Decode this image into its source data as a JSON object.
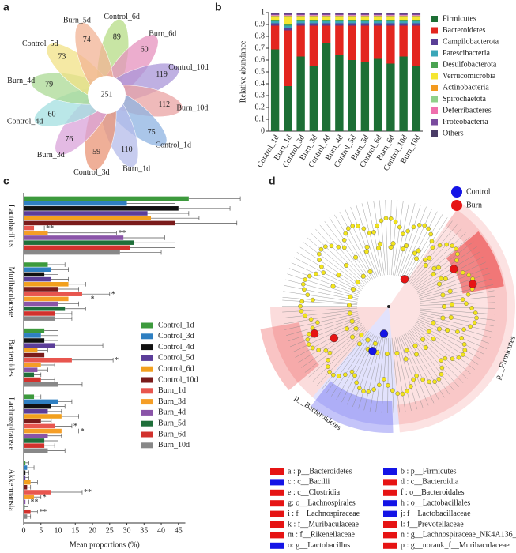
{
  "chart_data": [
    {
      "type": "venn",
      "panel": "a",
      "center_label": "251",
      "petals": [
        {
          "name": "Control_6d",
          "count": 89,
          "color": "#b5dc86"
        },
        {
          "name": "Burn_6d",
          "count": 60,
          "color": "#e691be"
        },
        {
          "name": "Control_10d",
          "count": 119,
          "color": "#a996d8"
        },
        {
          "name": "Burn_10d",
          "count": 112,
          "color": "#e9a3a3"
        },
        {
          "name": "Control_1d",
          "count": 75,
          "color": "#8db3e2"
        },
        {
          "name": "Burn_1d",
          "count": 110,
          "color": "#b4bbe9"
        },
        {
          "name": "Control_3d",
          "count": 59,
          "color": "#ea9476"
        },
        {
          "name": "Burn_3d",
          "count": 76,
          "color": "#d9a3d9"
        },
        {
          "name": "Control_4d",
          "count": 60,
          "color": "#a3dfe0"
        },
        {
          "name": "Burn_4d",
          "count": 79,
          "color": "#abd994"
        },
        {
          "name": "Control_5d",
          "count": 73,
          "color": "#f1e185"
        },
        {
          "name": "Burn_5d",
          "count": 74,
          "color": "#f1b394"
        }
      ]
    },
    {
      "type": "bar",
      "stacked": true,
      "panel": "b",
      "y_label": "Relative abundance",
      "categories": [
        "Control_1d",
        "Burn_1d",
        "Control_3d",
        "Burn_3d",
        "Control_4d",
        "Burn_4d",
        "Control_5d",
        "Burn_5d",
        "Control_6d",
        "Burn_6d",
        "Control_10d",
        "Burn_10d"
      ],
      "ylim": [
        0,
        1
      ],
      "yticks": [
        0,
        0.1,
        0.2,
        0.3,
        0.4,
        0.5,
        0.6,
        0.7,
        0.8,
        0.9,
        1
      ],
      "series": [
        {
          "name": "Firmicutes",
          "color": "#1d6f35",
          "values": [
            0.69,
            0.38,
            0.63,
            0.55,
            0.74,
            0.64,
            0.6,
            0.58,
            0.61,
            0.57,
            0.63,
            0.55
          ]
        },
        {
          "name": "Bacteroidetes",
          "color": "#e3261f",
          "values": [
            0.2,
            0.47,
            0.26,
            0.34,
            0.15,
            0.25,
            0.29,
            0.31,
            0.28,
            0.32,
            0.26,
            0.34
          ]
        },
        {
          "name": "Campilobacterota",
          "color": "#5a3f96",
          "values": [
            0.02,
            0.02,
            0.02,
            0.02,
            0.02,
            0.02,
            0.02,
            0.02,
            0.02,
            0.02,
            0.02,
            0.02
          ]
        },
        {
          "name": "Patescibacteria",
          "color": "#3aa6b8",
          "values": [
            0.02,
            0.02,
            0.02,
            0.02,
            0.02,
            0.02,
            0.02,
            0.02,
            0.02,
            0.02,
            0.02,
            0.02
          ]
        },
        {
          "name": "Desulfobacterota",
          "color": "#4aa352",
          "values": [
            0.01,
            0.01,
            0.01,
            0.01,
            0.01,
            0.01,
            0.01,
            0.01,
            0.01,
            0.01,
            0.01,
            0.01
          ]
        },
        {
          "name": "Verrucomicrobia",
          "color": "#f5e631",
          "values": [
            0.02,
            0.06,
            0.02,
            0.02,
            0.02,
            0.02,
            0.02,
            0.02,
            0.02,
            0.02,
            0.02,
            0.02
          ]
        },
        {
          "name": "Actinobacteria",
          "color": "#f39a1f",
          "values": [
            0.01,
            0.01,
            0.01,
            0.01,
            0.01,
            0.01,
            0.01,
            0.01,
            0.01,
            0.01,
            0.01,
            0.01
          ]
        },
        {
          "name": "Spirochaetota",
          "color": "#8ed08a",
          "values": [
            0.005,
            0.005,
            0.005,
            0.005,
            0.005,
            0.005,
            0.005,
            0.005,
            0.005,
            0.005,
            0.005,
            0.005
          ]
        },
        {
          "name": "Deferribacteres",
          "color": "#ef6fae",
          "values": [
            0.005,
            0.005,
            0.005,
            0.005,
            0.005,
            0.005,
            0.005,
            0.005,
            0.005,
            0.005,
            0.005,
            0.005
          ]
        },
        {
          "name": "Proteobacteria",
          "color": "#7a4b9e",
          "values": [
            0.01,
            0.01,
            0.01,
            0.01,
            0.01,
            0.01,
            0.01,
            0.01,
            0.01,
            0.01,
            0.01,
            0.01
          ]
        },
        {
          "name": "Others",
          "color": "#4a3b66",
          "values": [
            0.01,
            0.01,
            0.01,
            0.01,
            0.01,
            0.01,
            0.01,
            0.01,
            0.01,
            0.01,
            0.01,
            0.01
          ]
        }
      ]
    },
    {
      "type": "bar",
      "orientation": "horizontal",
      "panel": "c",
      "x_label": "Mean proportions (%)",
      "categories": [
        "Lactobacillus",
        "Muribaculaceae",
        "Bacteroides",
        "Lachnospiraceae",
        "Akkermansia"
      ],
      "xlim": [
        0,
        47
      ],
      "xticks": [
        0,
        5,
        10,
        15,
        20,
        25,
        30,
        35,
        40,
        45
      ],
      "series": [
        {
          "name": "Control_1d",
          "color": "#3d9a3d",
          "values": [
            48,
            7,
            6,
            3,
            0.5
          ],
          "errors": [
            15,
            5,
            4,
            2,
            1
          ]
        },
        {
          "name": "Control_3d",
          "color": "#2e7fc1",
          "values": [
            30,
            8,
            5,
            10,
            1
          ],
          "errors": [
            14,
            5,
            5,
            4,
            2
          ]
        },
        {
          "name": "Control_4d",
          "color": "#111111",
          "values": [
            45,
            6,
            6,
            8,
            0.5
          ],
          "errors": [
            15,
            4,
            4,
            4,
            1
          ]
        },
        {
          "name": "Control_5d",
          "color": "#5b3d99",
          "values": [
            36,
            8,
            9,
            7,
            0.5
          ],
          "errors": [
            12,
            5,
            14,
            4,
            1
          ]
        },
        {
          "name": "Control_6d",
          "color": "#f2a01e",
          "values": [
            37,
            13,
            4,
            11,
            2
          ],
          "errors": [
            14,
            5,
            3,
            5,
            2
          ]
        },
        {
          "name": "Control_10d",
          "color": "#7a1b1b",
          "values": [
            44,
            10,
            6,
            5,
            1
          ],
          "errors": [
            18,
            6,
            4,
            3,
            1
          ]
        },
        {
          "name": "Burn_1d",
          "color": "#e8564f",
          "values": [
            3,
            17,
            14,
            9,
            8
          ],
          "errors": [
            3,
            8,
            12,
            5,
            9
          ],
          "significance": [
            "**",
            "*",
            "*",
            "*",
            "**"
          ]
        },
        {
          "name": "Burn_3d",
          "color": "#f59e27",
          "values": [
            7,
            13,
            5,
            11,
            3
          ],
          "errors": [
            20,
            6,
            4,
            5,
            2
          ],
          "significance": [
            "**",
            "*",
            null,
            "*",
            "*"
          ]
        },
        {
          "name": "Burn_4d",
          "color": "#8a54a8",
          "values": [
            29,
            10,
            4,
            7,
            0.5
          ],
          "errors": [
            12,
            6,
            3,
            4,
            1
          ],
          "significance": [
            null,
            null,
            null,
            null,
            "**"
          ]
        },
        {
          "name": "Burn_5d",
          "color": "#1f6f3a",
          "values": [
            32,
            12,
            3,
            6,
            0.3
          ],
          "errors": [
            12,
            6,
            2,
            4,
            1
          ]
        },
        {
          "name": "Burn_6d",
          "color": "#d2322d",
          "values": [
            31,
            9,
            5,
            6,
            2
          ],
          "errors": [
            13,
            5,
            4,
            3,
            2
          ],
          "significance": [
            null,
            null,
            null,
            null,
            "**"
          ]
        },
        {
          "name": "Burn_10d",
          "color": "#888888",
          "values": [
            28,
            9,
            10,
            7,
            1
          ],
          "errors": [
            12,
            5,
            7,
            5,
            1
          ]
        }
      ]
    },
    {
      "type": "cladogram",
      "panel": "d",
      "groups": [
        {
          "name": "Control",
          "color": "#1414e6"
        },
        {
          "name": "Burn",
          "color": "#e61414"
        }
      ],
      "clade_labels": [
        "p__Firmicutes",
        "p__Bacteroidetes"
      ],
      "legend": [
        {
          "label": "a : p__Bacteroidetes",
          "color": "#e61414"
        },
        {
          "label": "b : p__Firmicutes",
          "color": "#1414e6"
        },
        {
          "label": "c : c__Bacilli",
          "color": "#1414e6"
        },
        {
          "label": "d : c__Bacteroidia",
          "color": "#e61414"
        },
        {
          "label": "e : c__Clostridia",
          "color": "#e61414"
        },
        {
          "label": "f : o__Bacteroidales",
          "color": "#e61414"
        },
        {
          "label": "g: o__Lachnospirales",
          "color": "#e61414"
        },
        {
          "label": "h : o__Lactobacillales",
          "color": "#1414e6"
        },
        {
          "label": "i : f__Lachnospiraceae",
          "color": "#e61414"
        },
        {
          "label": "j: f__Lactobacillaceae",
          "color": "#1414e6"
        },
        {
          "label": "k : f__Muribaculaceae",
          "color": "#e61414"
        },
        {
          "label": "l: f__Prevotellaceae",
          "color": "#e61414"
        },
        {
          "label": "m : f__Rikenellaceae",
          "color": "#e61414"
        },
        {
          "label": "n : g__Lachnospiraceae_NK4A136_group",
          "color": "#e61414"
        },
        {
          "label": "o: g__Lactobacillus",
          "color": "#1414e6"
        },
        {
          "label": "p : g__norank_f__Muribaculaceae",
          "color": "#e61414"
        }
      ]
    }
  ]
}
